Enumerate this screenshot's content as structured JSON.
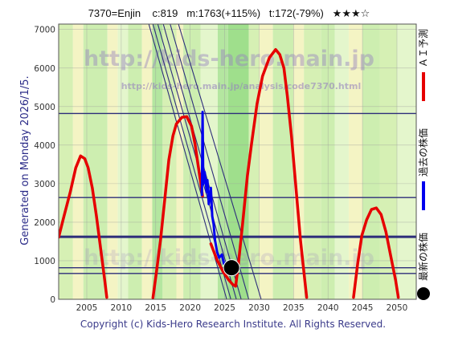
{
  "page": {
    "generated_note": "Generated on Monday 2026/1/5.",
    "footer": "Copyright (c) Kids-Hero Research Institute. All Rights Reserved.",
    "watermarks": {
      "site_url": "http://kids-hero.main.jp",
      "page_url": "http://kids-hero.main.jp/analysis/code7370.html",
      "site_url_lower": "http://kids-hero.main.jp"
    }
  },
  "chart_data": {
    "type": "line",
    "title": "7370=Enjin    c:819   m:1763(+115%)   t:172(-79%)   ★★★☆",
    "xlim": [
      2000.92,
      2052.8
    ],
    "ylim": [
      0,
      7140
    ],
    "xticks": [
      2005,
      2010,
      2015,
      2020,
      2025,
      2030,
      2035,
      2040,
      2045,
      2050
    ],
    "yticks": [
      0,
      1000,
      2000,
      3000,
      4000,
      5000,
      6000,
      7000
    ],
    "grid": true,
    "legend_position": "right",
    "series": [
      {
        "name": "ＡＩ予測",
        "color": "#e60000",
        "segments": [
          [
            [
              2000.92,
              1610
            ],
            [
              2001.7,
              2160
            ],
            [
              2002.6,
              2780
            ],
            [
              2003.4,
              3410
            ],
            [
              2004.1,
              3720
            ],
            [
              2004.7,
              3650
            ],
            [
              2005.2,
              3410
            ],
            [
              2005.8,
              2890
            ],
            [
              2006.4,
              2160
            ],
            [
              2007.0,
              1330
            ],
            [
              2007.6,
              500
            ],
            [
              2007.9,
              50
            ]
          ],
          [
            [
              2014.6,
              40
            ],
            [
              2015.1,
              700
            ],
            [
              2015.7,
              1540
            ],
            [
              2016.3,
              2570
            ],
            [
              2016.9,
              3610
            ],
            [
              2017.5,
              4240
            ],
            [
              2018.0,
              4550
            ],
            [
              2018.8,
              4720
            ],
            [
              2019.5,
              4740
            ],
            [
              2020.2,
              4490
            ],
            [
              2020.7,
              4030
            ],
            [
              2021.3,
              3300
            ],
            [
              2021.8,
              2680
            ]
          ],
          [
            [
              2023.0,
              1440
            ],
            [
              2023.9,
              1020
            ],
            [
              2024.8,
              710
            ],
            [
              2025.6,
              500
            ],
            [
              2026.2,
              380
            ],
            [
              2026.6,
              340
            ],
            [
              2027.0,
              920
            ],
            [
              2027.6,
              1950
            ],
            [
              2028.3,
              3200
            ],
            [
              2028.9,
              4030
            ],
            [
              2029.7,
              5070
            ],
            [
              2030.5,
              5790
            ],
            [
              2031.5,
              6270
            ],
            [
              2032.4,
              6480
            ],
            [
              2033.0,
              6350
            ],
            [
              2033.6,
              6000
            ],
            [
              2034.1,
              5270
            ],
            [
              2034.7,
              4230
            ],
            [
              2035.3,
              2990
            ],
            [
              2036.0,
              1540
            ],
            [
              2036.5,
              710
            ],
            [
              2036.9,
              50
            ]
          ],
          [
            [
              2043.7,
              50
            ],
            [
              2044.3,
              920
            ],
            [
              2044.9,
              1650
            ],
            [
              2045.6,
              2060
            ],
            [
              2046.3,
              2330
            ],
            [
              2047.0,
              2370
            ],
            [
              2047.7,
              2200
            ],
            [
              2048.4,
              1750
            ],
            [
              2049.1,
              1120
            ],
            [
              2049.8,
              500
            ],
            [
              2050.2,
              50
            ]
          ]
        ]
      },
      {
        "name": "過去の株価",
        "color": "#0000ee",
        "points": [
          [
            2021.7,
            2680
          ],
          [
            2021.8,
            4860
          ],
          [
            2021.9,
            2990
          ],
          [
            2022.1,
            3300
          ],
          [
            2022.4,
            2780
          ],
          [
            2022.5,
            3090
          ],
          [
            2022.7,
            2470
          ],
          [
            2023.0,
            2890
          ],
          [
            2023.2,
            2160
          ],
          [
            2023.4,
            1950
          ],
          [
            2023.6,
            1540
          ],
          [
            2023.9,
            1230
          ],
          [
            2024.2,
            1080
          ],
          [
            2024.6,
            1160
          ],
          [
            2024.9,
            920
          ],
          [
            2025.4,
            960
          ],
          [
            2025.7,
            810
          ],
          [
            2026.0,
            819
          ]
        ]
      },
      {
        "name": "最新の株価",
        "color": "#000000",
        "points": [
          [
            2026.0,
            819
          ]
        ]
      }
    ],
    "reference_lines": {
      "color": "#2d2d7a",
      "horizontal": [
        {
          "value": 4820
        },
        {
          "value": 2640
        },
        {
          "value": 1620,
          "emphasis": true
        },
        {
          "value": 819
        },
        {
          "value": 670
        }
      ],
      "diagonal": [
        [
          [
            2014.0,
            7140
          ],
          [
            2025.3,
            0
          ]
        ],
        [
          [
            2014.6,
            7140
          ],
          [
            2025.9,
            0
          ]
        ],
        [
          [
            2015.3,
            7140
          ],
          [
            2026.7,
            0
          ]
        ],
        [
          [
            2016.1,
            7140
          ],
          [
            2027.4,
            0
          ]
        ],
        [
          [
            2017.1,
            7140
          ],
          [
            2028.5,
            0
          ]
        ],
        [
          [
            2018.3,
            7140
          ],
          [
            2030.3,
            0
          ]
        ]
      ]
    },
    "background_bands": [
      {
        "x": [
          2000.92,
          2003.0
        ],
        "color": "#d6f0b4"
      },
      {
        "x": [
          2003.0,
          2004.5
        ],
        "color": "#f4f4c4"
      },
      {
        "x": [
          2004.5,
          2008.0
        ],
        "color": "#cdeeb0"
      },
      {
        "x": [
          2008.0,
          2009.5
        ],
        "color": "#f4f4c4"
      },
      {
        "x": [
          2009.5,
          2011.0
        ],
        "color": "#e4f6cc"
      },
      {
        "x": [
          2011.0,
          2013.0
        ],
        "color": "#cdeeb0"
      },
      {
        "x": [
          2013.0,
          2014.5
        ],
        "color": "#f4f4c4"
      },
      {
        "x": [
          2014.5,
          2016.0
        ],
        "color": "#b4e6a0"
      },
      {
        "x": [
          2016.0,
          2018.0
        ],
        "color": "#d6f0b4"
      },
      {
        "x": [
          2018.0,
          2019.0
        ],
        "color": "#f4f4c4"
      },
      {
        "x": [
          2019.0,
          2021.5
        ],
        "color": "#cdeeb0"
      },
      {
        "x": [
          2021.5,
          2024.0
        ],
        "color": "#e4f6cc"
      },
      {
        "x": [
          2024.0,
          2025.5
        ],
        "color": "#b4e6a0"
      },
      {
        "x": [
          2025.5,
          2028.5
        ],
        "color": "#9fdf8c"
      },
      {
        "x": [
          2028.5,
          2030.0
        ],
        "color": "#d6f0b4"
      },
      {
        "x": [
          2030.0,
          2032.0
        ],
        "color": "#f4f4c4"
      },
      {
        "x": [
          2032.0,
          2035.0
        ],
        "color": "#cdeeb0"
      },
      {
        "x": [
          2035.0,
          2036.5
        ],
        "color": "#f4f4c4"
      },
      {
        "x": [
          2036.5,
          2039.0
        ],
        "color": "#d6f0b4"
      },
      {
        "x": [
          2039.0,
          2041.0
        ],
        "color": "#cdeeb0"
      },
      {
        "x": [
          2041.0,
          2043.0
        ],
        "color": "#e4f6cc"
      },
      {
        "x": [
          2043.0,
          2045.0
        ],
        "color": "#f4f4c4"
      },
      {
        "x": [
          2045.0,
          2047.5
        ],
        "color": "#cdeeb0"
      },
      {
        "x": [
          2047.5,
          2050.0
        ],
        "color": "#d6f0b4"
      },
      {
        "x": [
          2050.0,
          2052.8
        ],
        "color": "#e4f6cc"
      }
    ]
  }
}
